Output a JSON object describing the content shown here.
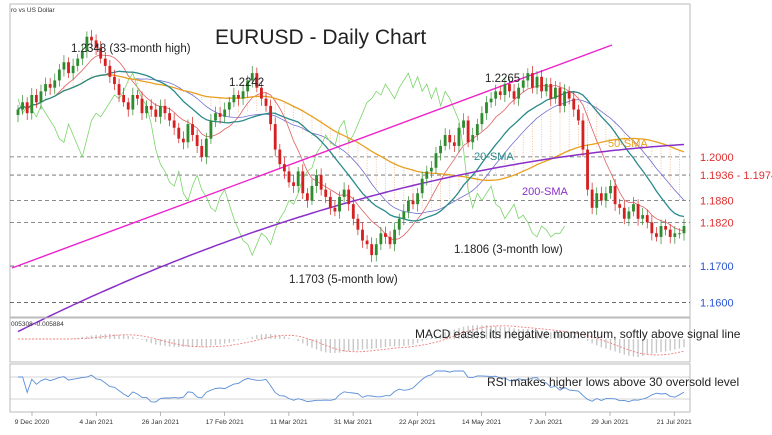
{
  "header": {
    "instrument": "ro vs US Dollar",
    "title": "EURUSD - Daily Chart"
  },
  "chart_data": [
    {
      "type": "candlestick",
      "ylim": [
        1.156,
        1.242
      ],
      "x_ticks": [
        "9 Dec 2020",
        "4 Jan 2021",
        "26 Jan 2021",
        "17 Feb 2021",
        "11 Mar 2021",
        "31 Mar 2021",
        "22 Apr 2021",
        "14 May 2021",
        "7 Jun 2021",
        "29 Jun 2021",
        "21 Jul 2021"
      ],
      "levels": [
        {
          "label": "1.2000",
          "value": 1.2,
          "color": "#e03030",
          "style": "dashed"
        },
        {
          "label": "1.1936 - 1.1974",
          "value": 1.195,
          "color": "#e03030",
          "style": "dashed"
        },
        {
          "label": "1.1880",
          "value": 1.188,
          "color": "#e03030",
          "style": "dashed"
        },
        {
          "label": "1.1820",
          "value": 1.182,
          "color": "#e03030",
          "style": "dashed"
        },
        {
          "label": "1.1700",
          "value": 1.17,
          "color": "#2a55d4",
          "style": "dashed"
        },
        {
          "label": "1.1600",
          "value": 1.16,
          "color": "#2a55d4",
          "style": "dashed"
        }
      ],
      "annotations": [
        {
          "text": "1.2348 (33-month high)",
          "day": 17,
          "value": 1.2348
        },
        {
          "text": "1.2242",
          "day": 52,
          "value": 1.2242
        },
        {
          "text": "1.2265",
          "day": 110,
          "value": 1.2265
        },
        {
          "text": "1.1703 (5-month low)",
          "day": 77,
          "value": 1.1703
        },
        {
          "text": "1.1806 (3-month low)",
          "day": 144,
          "value": 1.1806
        }
      ],
      "indicators": [
        {
          "name": "20-SMA",
          "color": "#2a8a8a"
        },
        {
          "name": "50-SMA",
          "color": "#e8a020"
        },
        {
          "name": "200-SMA",
          "color": "#8a30c8"
        }
      ],
      "colors": {
        "up": "#2e8b2e",
        "down": "#d42020",
        "trendline": "#ee22cc",
        "chikou": "#7bd46a",
        "tenkan": "#e06060",
        "kijun": "#7070d0",
        "cloud": "#f4b48a"
      },
      "closes": [
        1.213,
        1.215,
        1.212,
        1.217,
        1.215,
        1.218,
        1.22,
        1.219,
        1.221,
        1.224,
        1.226,
        1.223,
        1.225,
        1.227,
        1.229,
        1.233,
        1.232,
        1.23,
        1.227,
        1.225,
        1.222,
        1.22,
        1.217,
        1.215,
        1.213,
        1.217,
        1.216,
        1.212,
        1.214,
        1.213,
        1.211,
        1.214,
        1.212,
        1.21,
        1.208,
        1.205,
        1.204,
        1.209,
        1.206,
        1.203,
        1.2,
        1.205,
        1.21,
        1.212,
        1.211,
        1.213,
        1.215,
        1.217,
        1.216,
        1.218,
        1.221,
        1.223,
        1.219,
        1.216,
        1.214,
        1.209,
        1.202,
        1.198,
        1.196,
        1.193,
        1.192,
        1.196,
        1.19,
        1.188,
        1.192,
        1.195,
        1.191,
        1.189,
        1.186,
        1.185,
        1.189,
        1.191,
        1.187,
        1.183,
        1.18,
        1.177,
        1.176,
        1.173,
        1.176,
        1.179,
        1.178,
        1.176,
        1.18,
        1.183,
        1.185,
        1.188,
        1.187,
        1.19,
        1.194,
        1.196,
        1.197,
        1.201,
        1.203,
        1.206,
        1.204,
        1.203,
        1.208,
        1.21,
        1.204,
        1.206,
        1.209,
        1.212,
        1.215,
        1.216,
        1.218,
        1.217,
        1.22,
        1.218,
        1.216,
        1.219,
        1.221,
        1.223,
        1.219,
        1.222,
        1.218,
        1.22,
        1.216,
        1.219,
        1.214,
        1.218,
        1.216,
        1.213,
        1.21,
        1.202,
        1.191,
        1.186,
        1.19,
        1.188,
        1.19,
        1.192,
        1.187,
        1.186,
        1.183,
        1.185,
        1.187,
        1.183,
        1.184,
        1.182,
        1.179,
        1.178,
        1.181,
        1.18,
        1.178,
        1.179,
        1.179,
        1.181
      ]
    },
    {
      "type": "histogram",
      "title": "MACD eases its negative momentum, softly above signal line",
      "readout": "005308  -0.005884",
      "colors": {
        "bars": "#c8c8c8",
        "signal": "#f08080"
      }
    },
    {
      "type": "line",
      "title": "RSI makes higher lows above 30 oversold level",
      "colors": {
        "rsi": "#5b8fd8"
      }
    }
  ]
}
